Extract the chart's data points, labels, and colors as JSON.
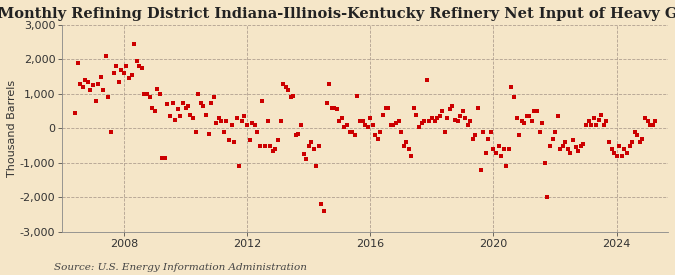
{
  "title": "Monthly Refining District Indiana-Illinois-Kentucky Refinery Net Input of Heavy Gas Oils",
  "ylabel": "Thousand Barrels",
  "source": "Source: U.S. Energy Information Administration",
  "background_color": "#f5e6c8",
  "dot_color": "#cc0000",
  "ylim": [
    -3000,
    3000
  ],
  "yticks": [
    -3000,
    -2000,
    -1000,
    0,
    1000,
    2000,
    3000
  ],
  "xticks_years": [
    2008,
    2012,
    2016,
    2020,
    2024
  ],
  "x_start_year": 2006,
  "title_fontsize": 10.5,
  "ylabel_fontsize": 8,
  "tick_fontsize": 8,
  "source_fontsize": 7.5,
  "data_values": [
    450,
    1900,
    1300,
    1200,
    1400,
    1350,
    1100,
    1250,
    800,
    1300,
    1500,
    1100,
    2100,
    900,
    -100,
    1600,
    1800,
    1350,
    1700,
    1600,
    1800,
    1450,
    1550,
    2450,
    1950,
    1800,
    1750,
    1000,
    1000,
    900,
    600,
    500,
    1150,
    1000,
    -850,
    -850,
    700,
    350,
    750,
    250,
    550,
    350,
    750,
    600,
    650,
    400,
    300,
    -100,
    1000,
    750,
    650,
    400,
    -150,
    750,
    900,
    150,
    300,
    200,
    -100,
    200,
    -350,
    100,
    -400,
    300,
    -1100,
    200,
    350,
    100,
    -350,
    150,
    100,
    -100,
    -500,
    800,
    -500,
    200,
    -500,
    -650,
    -600,
    -350,
    200,
    1300,
    1200,
    1100,
    900,
    950,
    -200,
    -150,
    100,
    -750,
    -900,
    -500,
    -400,
    -600,
    -1100,
    -500,
    -2200,
    -2400,
    750,
    1300,
    600,
    600,
    550,
    200,
    300,
    50,
    100,
    -100,
    -100,
    -200,
    950,
    200,
    200,
    100,
    50,
    300,
    100,
    -200,
    -300,
    -100,
    400,
    600,
    600,
    100,
    100,
    150,
    200,
    -100,
    -500,
    -400,
    -600,
    -800,
    600,
    400,
    50,
    150,
    200,
    1400,
    200,
    300,
    200,
    300,
    350,
    500,
    -100,
    300,
    550,
    650,
    250,
    200,
    350,
    500,
    300,
    100,
    200,
    -300,
    -200,
    600,
    -1200,
    -100,
    -700,
    -300,
    -100,
    -600,
    -700,
    -500,
    -800,
    -600,
    -1100,
    -600,
    1200,
    900,
    300,
    -200,
    200,
    150,
    350,
    350,
    200,
    500,
    500,
    -100,
    150,
    -1000,
    -2000,
    -500,
    -300,
    -100,
    350,
    -600,
    -500,
    -400,
    -600,
    -700,
    -350,
    -550,
    -650,
    -500,
    -450,
    100,
    200,
    100,
    300,
    100,
    250,
    400,
    100,
    200,
    -400,
    -600,
    -700,
    -800,
    -500,
    -800,
    -600,
    -700,
    -500,
    -400,
    -100,
    -200,
    -400,
    -300,
    300,
    200,
    100,
    100,
    200
  ]
}
